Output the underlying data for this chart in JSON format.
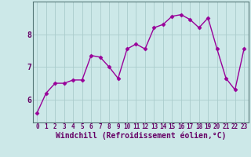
{
  "x": [
    0,
    1,
    2,
    3,
    4,
    5,
    6,
    7,
    8,
    9,
    10,
    11,
    12,
    13,
    14,
    15,
    16,
    17,
    18,
    19,
    20,
    21,
    22,
    23
  ],
  "y": [
    5.6,
    6.2,
    6.5,
    6.5,
    6.6,
    6.6,
    7.35,
    7.3,
    7.0,
    6.65,
    7.55,
    7.7,
    7.55,
    8.2,
    8.3,
    8.55,
    8.6,
    8.45,
    8.2,
    8.5,
    7.55,
    6.65,
    6.3,
    7.55
  ],
  "line_color": "#990099",
  "marker": "D",
  "markersize": 2.5,
  "linewidth": 1.0,
  "xlabel": "Windchill (Refroidissement éolien,°C)",
  "xlabel_fontsize": 7,
  "xlabel_color": "#660066",
  "xlabel_weight": "bold",
  "xtick_labels": [
    "0",
    "1",
    "2",
    "3",
    "4",
    "5",
    "6",
    "7",
    "8",
    "9",
    "10",
    "11",
    "12",
    "13",
    "14",
    "15",
    "16",
    "17",
    "18",
    "19",
    "20",
    "21",
    "22",
    "23"
  ],
  "xtick_fontsize": 5.5,
  "xtick_color": "#660066",
  "ytick_labels": [
    "6",
    "7",
    "8"
  ],
  "ytick_values": [
    6,
    7,
    8
  ],
  "ytick_fontsize": 7,
  "ytick_color": "#660066",
  "ylim": [
    5.3,
    9.0
  ],
  "xlim": [
    -0.5,
    23.5
  ],
  "bg_color": "#cce8e8",
  "grid_color": "#aacccc",
  "spine_color": "#557777"
}
